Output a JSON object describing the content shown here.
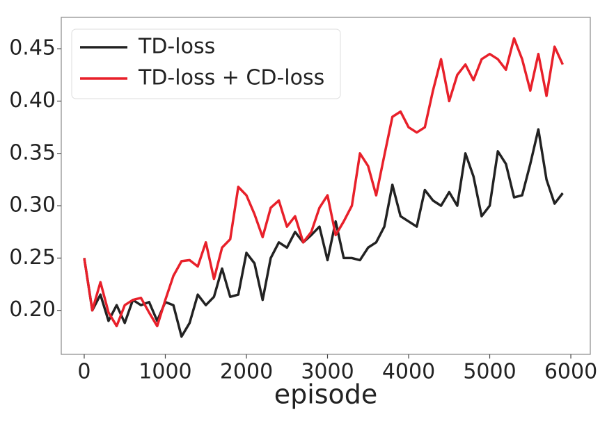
{
  "chart_data": {
    "type": "line",
    "xlabel": "episode",
    "x": [
      0,
      100,
      200,
      300,
      400,
      500,
      600,
      700,
      800,
      900,
      1000,
      1100,
      1200,
      1300,
      1400,
      1500,
      1600,
      1700,
      1800,
      1900,
      2000,
      2100,
      2200,
      2300,
      2400,
      2500,
      2600,
      2700,
      2800,
      2900,
      3000,
      3100,
      3200,
      3300,
      3400,
      3500,
      3600,
      3700,
      3800,
      3900,
      4000,
      4100,
      4200,
      4300,
      4400,
      4500,
      4600,
      4700,
      4800,
      4900,
      5000,
      5100,
      5200,
      5300,
      5400,
      5500,
      5600,
      5700,
      5800,
      5900
    ],
    "series": [
      {
        "name": "TD-loss",
        "color": "#222222",
        "values": [
          0.25,
          0.2,
          0.215,
          0.19,
          0.205,
          0.188,
          0.21,
          0.205,
          0.208,
          0.19,
          0.208,
          0.205,
          0.175,
          0.188,
          0.215,
          0.205,
          0.213,
          0.24,
          0.213,
          0.215,
          0.255,
          0.245,
          0.21,
          0.25,
          0.265,
          0.26,
          0.275,
          0.265,
          0.272,
          0.28,
          0.248,
          0.285,
          0.25,
          0.25,
          0.248,
          0.26,
          0.265,
          0.28,
          0.32,
          0.29,
          0.285,
          0.28,
          0.315,
          0.305,
          0.3,
          0.313,
          0.3,
          0.35,
          0.328,
          0.29,
          0.3,
          0.352,
          0.34,
          0.308,
          0.31,
          0.34,
          0.373,
          0.325,
          0.302,
          0.312
        ]
      },
      {
        "name": "TD-loss + CD-loss",
        "color": "#e8202a",
        "values": [
          0.25,
          0.2,
          0.227,
          0.198,
          0.185,
          0.205,
          0.21,
          0.212,
          0.198,
          0.185,
          0.21,
          0.233,
          0.247,
          0.248,
          0.242,
          0.265,
          0.23,
          0.26,
          0.268,
          0.318,
          0.31,
          0.292,
          0.27,
          0.298,
          0.305,
          0.28,
          0.29,
          0.265,
          0.275,
          0.298,
          0.31,
          0.272,
          0.285,
          0.3,
          0.35,
          0.338,
          0.31,
          0.348,
          0.385,
          0.39,
          0.375,
          0.37,
          0.375,
          0.41,
          0.44,
          0.4,
          0.425,
          0.435,
          0.42,
          0.44,
          0.445,
          0.44,
          0.43,
          0.46,
          0.44,
          0.41,
          0.445,
          0.405,
          0.452,
          0.435
        ]
      }
    ],
    "xlim": [
      -283,
      6240
    ],
    "ylim": [
      0.158,
      0.48
    ],
    "xticks": [
      0,
      1000,
      2000,
      3000,
      4000,
      5000,
      6000
    ],
    "yticks": [
      {
        "value": 0.2,
        "label": "0.20"
      },
      0.25,
      {
        "value": 0.3,
        "label": "0.30"
      },
      0.35,
      {
        "value": 0.4,
        "label": "0.40"
      },
      0.45
    ],
    "legend": "upper left",
    "grid": false
  }
}
